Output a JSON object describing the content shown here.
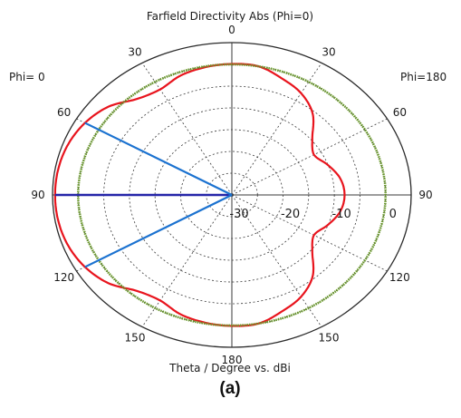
{
  "chart_data": {
    "type": "polar",
    "title": "Farfield Directivity Abs (Phi=0)",
    "xlabel": "Theta / Degree vs. dBi",
    "caption": "(a)",
    "side_labels": {
      "left": "Phi=  0",
      "right": "Phi=180"
    },
    "angle_labels": [
      "0",
      "30",
      "60",
      "90",
      "120",
      "150",
      "180",
      "150",
      "120",
      "90",
      "60",
      "30"
    ],
    "angle_positions_deg": [
      0,
      30,
      60,
      90,
      120,
      150,
      180,
      210,
      240,
      270,
      300,
      330
    ],
    "radial_labels": [
      "-30",
      "-20",
      "-10",
      "0"
    ],
    "radial_values": [
      -30,
      -20,
      -10,
      0
    ],
    "rlim": [
      -30,
      5
    ],
    "grid": true,
    "colors": {
      "main": "#e8141d",
      "reference": "#6a9a2a",
      "main_lobe": "#1b72d0",
      "direction": "#2525a8",
      "grid": "#3a3a3a"
    },
    "series": [
      {
        "label": "",
        "color": "#e8141d",
        "angle_deg": [
          0,
          10,
          20,
          30,
          40,
          50,
          60,
          70,
          80,
          90,
          100,
          110,
          120,
          130,
          140,
          150,
          160,
          170,
          180,
          190,
          200,
          210,
          220,
          230,
          240,
          250,
          260,
          270,
          280,
          290,
          300,
          310,
          320,
          330,
          340,
          350
        ],
        "r_dbi": [
          0.1,
          -0.2,
          -0.8,
          -2.0,
          -1.2,
          1.5,
          3.1,
          4.0,
          4.4,
          4.5,
          4.4,
          4.0,
          3.1,
          1.5,
          -1.2,
          -2.0,
          -0.8,
          -0.2,
          0.1,
          0.0,
          -1.5,
          -3.0,
          -5.5,
          -9.5,
          -11.5,
          -10.0,
          -8.5,
          -8.0,
          -8.5,
          -10.0,
          -11.5,
          -9.5,
          -5.5,
          -3.0,
          -1.5,
          0.0
        ]
      },
      {
        "label": "",
        "color": "#6a9a2a",
        "angle_deg": [
          0,
          30,
          60,
          90,
          120,
          150,
          180,
          210,
          240,
          270,
          300,
          330
        ],
        "r_dbi": [
          0,
          0,
          0,
          0,
          0,
          0,
          0,
          0,
          0,
          0,
          0,
          0
        ]
      }
    ],
    "main_lobe": {
      "direction_deg": 90,
      "r_dbi": 4.5,
      "half_power_beamwidth_edges_deg": [
        60,
        120
      ]
    }
  }
}
